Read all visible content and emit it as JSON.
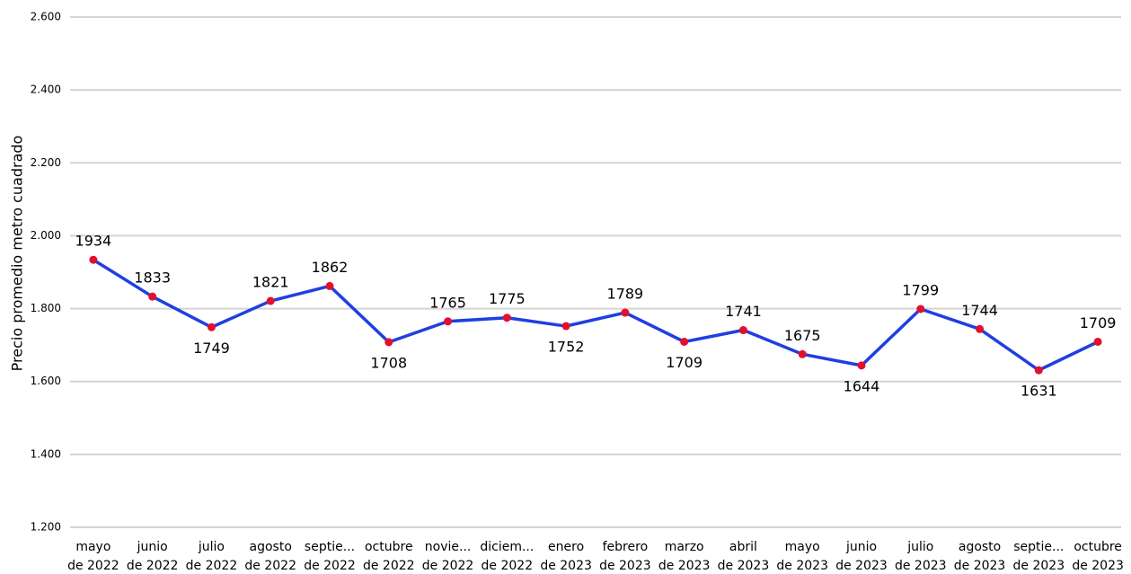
{
  "chart_data": {
    "type": "line",
    "y_label": "Precio promedio metro cuadrado",
    "categories": [
      "mayo de 2022",
      "junio de 2022",
      "julio de 2022",
      "agosto de 2022",
      "septie... de 2022",
      "octubre de 2022",
      "novie... de 2022",
      "diciem... de 2022",
      "enero de 2023",
      "febrero de 2023",
      "marzo de 2023",
      "abril de 2023",
      "mayo de 2023",
      "junio de 2023",
      "julio de 2023",
      "agosto de 2023",
      "septie... de 2023",
      "octubre de 2023"
    ],
    "series": [
      {
        "color": "#1f3fe0",
        "marker_color": "#e3102c",
        "values": [
          1934,
          1833,
          1749,
          1821,
          1862,
          1708,
          1765,
          1775,
          1752,
          1789,
          1709,
          1741,
          1675,
          1644,
          1799,
          1744,
          1631,
          1709
        ]
      }
    ],
    "ylim": [
      1200,
      2600
    ],
    "yticks": [
      {
        "value": 1200,
        "label": "1.200"
      },
      {
        "value": 1400,
        "label": "1.400"
      },
      {
        "value": 1600,
        "label": "1.600"
      },
      {
        "value": 1800,
        "label": "1.800"
      },
      {
        "value": 2000,
        "label": "2.000"
      },
      {
        "value": 2200,
        "label": "2.200"
      },
      {
        "value": 2400,
        "label": "2.400"
      },
      {
        "value": 2600,
        "label": "2.600"
      }
    ],
    "grid": true
  }
}
